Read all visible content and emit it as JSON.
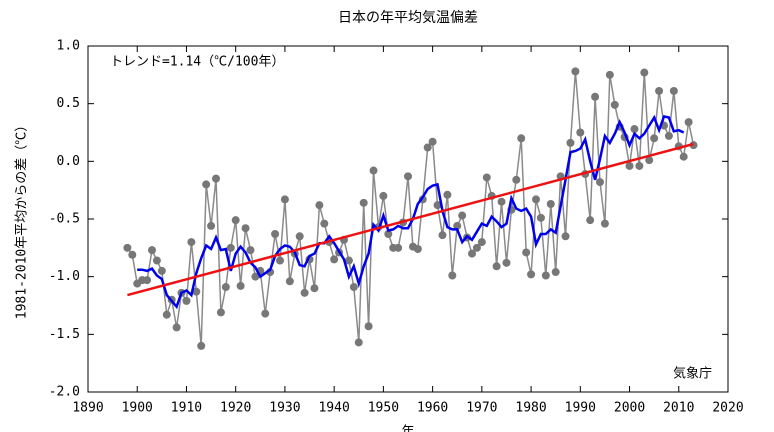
{
  "chart_data": {
    "type": "line",
    "title": "日本の年平均気温偏差",
    "ylabel": "1981-2010年平均からの差（℃）",
    "xlabel": "年",
    "annotations": [
      "トレンド=1.14（℃/100年）",
      "気象庁"
    ],
    "x": [
      1898,
      1899,
      1900,
      1901,
      1902,
      1903,
      1904,
      1905,
      1906,
      1907,
      1908,
      1909,
      1910,
      1911,
      1912,
      1913,
      1914,
      1915,
      1916,
      1917,
      1918,
      1919,
      1920,
      1921,
      1922,
      1923,
      1924,
      1925,
      1926,
      1927,
      1928,
      1929,
      1930,
      1931,
      1932,
      1933,
      1934,
      1935,
      1936,
      1937,
      1938,
      1939,
      1940,
      1941,
      1942,
      1943,
      1944,
      1945,
      1946,
      1947,
      1948,
      1949,
      1950,
      1951,
      1952,
      1953,
      1954,
      1955,
      1956,
      1957,
      1958,
      1959,
      1960,
      1961,
      1962,
      1963,
      1964,
      1965,
      1966,
      1967,
      1968,
      1969,
      1970,
      1971,
      1972,
      1973,
      1974,
      1975,
      1976,
      1977,
      1978,
      1979,
      1980,
      1981,
      1982,
      1983,
      1984,
      1985,
      1986,
      1987,
      1988,
      1989,
      1990,
      1991,
      1992,
      1993,
      1994,
      1995,
      1996,
      1997,
      1998,
      1999,
      2000,
      2001,
      2002,
      2003,
      2004,
      2005,
      2006,
      2007,
      2008,
      2009,
      2010,
      2011,
      2012,
      2013
    ],
    "series": [
      {
        "color": "#777777",
        "markers": true,
        "values": [
          -0.75,
          -0.81,
          -1.06,
          -1.03,
          -1.03,
          -0.77,
          -0.86,
          -0.95,
          -1.33,
          -1.2,
          -1.44,
          -1.14,
          -1.21,
          -0.7,
          -1.13,
          -1.6,
          -0.2,
          -0.56,
          -0.15,
          -1.31,
          -1.09,
          -0.75,
          -0.51,
          -1.08,
          -0.58,
          -0.77,
          -1.0,
          -0.95,
          -1.32,
          -0.96,
          -0.63,
          -0.86,
          -0.33,
          -1.04,
          -0.8,
          -0.65,
          -1.14,
          -0.85,
          -1.1,
          -0.38,
          -0.54,
          -0.7,
          -0.85,
          -0.79,
          -0.68,
          -0.86,
          -1.09,
          -1.57,
          -0.36,
          -1.43,
          -0.08,
          -0.57,
          -0.3,
          -0.63,
          -0.75,
          -0.75,
          -0.53,
          -0.13,
          -0.74,
          -0.76,
          -0.33,
          0.12,
          0.17,
          -0.38,
          -0.64,
          -0.29,
          -0.99,
          -0.56,
          -0.47,
          -0.66,
          -0.8,
          -0.75,
          -0.7,
          -0.14,
          -0.3,
          -0.91,
          -0.35,
          -0.88,
          -0.42,
          -0.16,
          0.2,
          -0.79,
          -0.98,
          -0.33,
          -0.49,
          -0.99,
          -0.37,
          -0.96,
          -0.13,
          -0.65,
          0.16,
          0.78,
          0.25,
          -0.11,
          -0.51,
          0.56,
          -0.18,
          -0.54,
          0.75,
          0.49,
          0.3,
          0.21,
          -0.04,
          0.28,
          -0.04,
          0.77,
          0.01,
          0.2,
          0.61,
          0.31,
          0.22,
          0.61,
          0.13,
          0.04,
          0.34,
          0.14
        ]
      },
      {
        "color": "#0000ee",
        "markers": false,
        "values": [
          null,
          null,
          -0.94,
          -0.94,
          -0.95,
          -0.93,
          -0.99,
          -1.02,
          -1.16,
          -1.21,
          -1.26,
          -1.14,
          -1.12,
          -1.16,
          -0.97,
          -0.84,
          -0.73,
          -0.76,
          -0.66,
          -0.77,
          -0.76,
          -0.95,
          -0.8,
          -0.74,
          -0.79,
          -0.88,
          -0.92,
          -1.0,
          -0.97,
          -0.94,
          -0.82,
          -0.76,
          -0.73,
          -0.74,
          -0.79,
          -0.9,
          -0.91,
          -0.82,
          -0.8,
          -0.71,
          -0.71,
          -0.65,
          -0.71,
          -0.78,
          -0.85,
          -1.0,
          -0.91,
          -1.06,
          -0.91,
          -0.8,
          -0.55,
          -0.6,
          -0.47,
          -0.6,
          -0.59,
          -0.56,
          -0.58,
          -0.58,
          -0.5,
          -0.37,
          -0.31,
          -0.24,
          -0.21,
          -0.2,
          -0.43,
          -0.57,
          -0.59,
          -0.59,
          -0.7,
          -0.65,
          -0.68,
          -0.61,
          -0.54,
          -0.56,
          -0.48,
          -0.52,
          -0.57,
          -0.54,
          -0.32,
          -0.41,
          -0.43,
          -0.41,
          -0.48,
          -0.72,
          -0.63,
          -0.63,
          -0.59,
          -0.62,
          -0.39,
          -0.16,
          0.08,
          0.09,
          0.11,
          0.19,
          0.0,
          -0.16,
          0.02,
          0.22,
          0.16,
          0.24,
          0.34,
          0.25,
          0.14,
          0.24,
          0.2,
          0.24,
          0.31,
          0.38,
          0.27,
          0.39,
          0.38,
          0.26,
          0.27,
          0.25,
          null,
          null
        ]
      },
      {
        "color": "#ee1111",
        "markers": false,
        "x": [
          1898,
          2013
        ],
        "values": [
          -1.16,
          0.15
        ]
      }
    ],
    "xlim": [
      1890,
      2020
    ],
    "xticks": [
      1890,
      1900,
      1910,
      1920,
      1930,
      1940,
      1950,
      1960,
      1970,
      1980,
      1990,
      2000,
      2010,
      2020
    ],
    "ylim": [
      -2,
      1
    ],
    "yticks": [
      {
        "value": -2,
        "label": "-2.0"
      },
      {
        "value": -1.5,
        "label": "-1.5"
      },
      {
        "value": -1,
        "label": "-1.0"
      },
      {
        "value": -0.5,
        "label": "-0.5"
      },
      {
        "value": 0,
        "label": "0.0"
      },
      {
        "value": 0.5,
        "label": "0.5"
      },
      {
        "value": 1,
        "label": "1.0"
      }
    ],
    "grid": true
  }
}
